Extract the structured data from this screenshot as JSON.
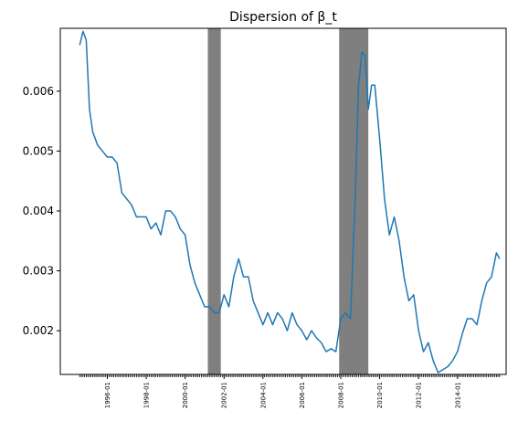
{
  "chart_data": {
    "type": "line",
    "title": "Dispersion of β_t",
    "x": [
      "1994-08",
      "1994-10",
      "1994-12",
      "1995-02",
      "1995-04",
      "1995-07",
      "1995-10",
      "1996-01",
      "1996-04",
      "1996-07",
      "1996-10",
      "1997-01",
      "1997-04",
      "1997-07",
      "1997-10",
      "1998-01",
      "1998-04",
      "1998-07",
      "1998-10",
      "1999-01",
      "1999-04",
      "1999-07",
      "1999-10",
      "2000-01",
      "2000-04",
      "2000-07",
      "2000-10",
      "2001-01",
      "2001-04",
      "2001-07",
      "2001-10",
      "2002-01",
      "2002-04",
      "2002-07",
      "2002-10",
      "2003-01",
      "2003-04",
      "2003-07",
      "2003-10",
      "2004-01",
      "2004-04",
      "2004-07",
      "2004-10",
      "2005-01",
      "2005-04",
      "2005-07",
      "2005-10",
      "2006-01",
      "2006-04",
      "2006-07",
      "2006-10",
      "2007-01",
      "2007-04",
      "2007-07",
      "2007-10",
      "2008-01",
      "2008-04",
      "2008-07",
      "2008-10",
      "2008-12",
      "2009-02",
      "2009-04",
      "2009-06",
      "2009-08",
      "2009-10",
      "2010-01",
      "2010-04",
      "2010-07",
      "2010-10",
      "2011-01",
      "2011-04",
      "2011-07",
      "2011-10",
      "2012-01",
      "2012-04",
      "2012-07",
      "2012-10",
      "2013-01",
      "2013-04",
      "2013-07",
      "2013-10",
      "2014-01",
      "2014-04",
      "2014-07",
      "2014-10",
      "2015-01",
      "2015-04",
      "2015-07",
      "2015-10",
      "2016-01",
      "2016-03"
    ],
    "series": [
      {
        "color": "#1f77b4",
        "values": [
          0.00677,
          0.007,
          0.00685,
          0.0057,
          0.00532,
          0.0051,
          0.005,
          0.0049,
          0.0049,
          0.0048,
          0.0043,
          0.0042,
          0.0041,
          0.0039,
          0.0039,
          0.0039,
          0.0037,
          0.0038,
          0.0036,
          0.004,
          0.004,
          0.0039,
          0.0037,
          0.0036,
          0.0031,
          0.0028,
          0.0026,
          0.0024,
          0.0024,
          0.0023,
          0.0023,
          0.0026,
          0.0024,
          0.0029,
          0.0032,
          0.0029,
          0.0029,
          0.0025,
          0.0023,
          0.0021,
          0.0023,
          0.0021,
          0.0023,
          0.0022,
          0.002,
          0.0023,
          0.0021,
          0.002,
          0.00185,
          0.002,
          0.00188,
          0.0018,
          0.00165,
          0.0017,
          0.00165,
          0.0022,
          0.0023,
          0.0022,
          0.0043,
          0.0061,
          0.00665,
          0.0066,
          0.0057,
          0.0061,
          0.0061,
          0.0052,
          0.0042,
          0.0036,
          0.0039,
          0.0035,
          0.0029,
          0.0025,
          0.0026,
          0.002,
          0.00165,
          0.0018,
          0.0015,
          0.0013,
          0.00135,
          0.0014,
          0.0015,
          0.00165,
          0.00195,
          0.0022,
          0.0022,
          0.0021,
          0.0025,
          0.0028,
          0.0029,
          0.0033,
          0.0032
        ]
      }
    ],
    "shaded_regions": [
      {
        "start": "2001-03",
        "end": "2001-11",
        "color": "#7f7f7f"
      },
      {
        "start": "2007-12",
        "end": "2009-06",
        "color": "#7f7f7f"
      }
    ],
    "xlim": [
      "1993-08",
      "2016-07"
    ],
    "xticks": [
      "1996-01",
      "1998-01",
      "2000-01",
      "2002-01",
      "2004-01",
      "2006-01",
      "2008-01",
      "2010-01",
      "2012-01",
      "2014-01"
    ],
    "ylim": [
      0.00127,
      0.00705
    ],
    "yticks": [
      0.002,
      0.003,
      0.004,
      0.005,
      0.006
    ]
  }
}
